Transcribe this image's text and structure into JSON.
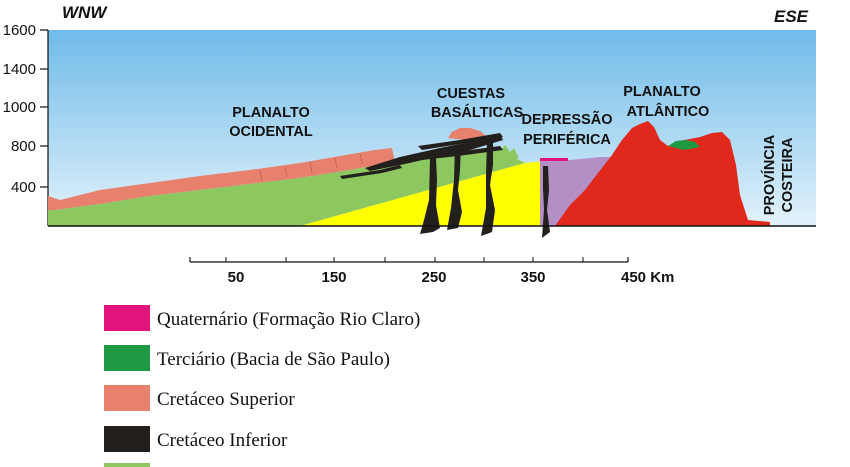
{
  "directions": {
    "west": "WNW",
    "east": "ESE"
  },
  "elevation_ticks": [
    "1600",
    "1400",
    "1000",
    "800",
    "400"
  ],
  "regions": {
    "planalto_ocidental": [
      "PLANALTO",
      "OCIDENTAL"
    ],
    "cuestas_basalticas": [
      "CUESTAS",
      "BASÁLTICAS"
    ],
    "depressao_periferica": [
      "DEPRESSÃO",
      "PERIFÉRICA"
    ],
    "planalto_atlantico": [
      "PLANALTO",
      "ATLÂNTICO"
    ],
    "provincia_costeira": [
      "PROVÍNCIA",
      "COSTEIRA"
    ]
  },
  "distance_scale": {
    "ticks": [
      "50",
      "150",
      "250",
      "350"
    ],
    "end_label": "450 Km"
  },
  "legend": [
    {
      "label": "Quaternário (Formação Rio Claro)",
      "color": "#e0147a"
    },
    {
      "label": "Terciário (Bacia de São Paulo)",
      "color": "#1e9a45"
    },
    {
      "label": "Cretáceo Superior",
      "color": "#e8806e"
    },
    {
      "label": "Cretáceo Inferior",
      "color": "#231f1d"
    },
    {
      "label": "",
      "color": "#8cc760"
    }
  ],
  "colors": {
    "sky_top": "#6fbbe9",
    "sky_bottom": "#e3f2fb",
    "cretaceous_upper": "#e8806e",
    "cretaceous_lower": "#231f1d",
    "sediments_green": "#8cc760",
    "sediments_yellow": "#ffff00",
    "sediments_purple": "#b48fc6",
    "crystalline_red": "#e0281c",
    "tertiary_green": "#1e9a45",
    "quaternary_pink": "#e0147a"
  }
}
